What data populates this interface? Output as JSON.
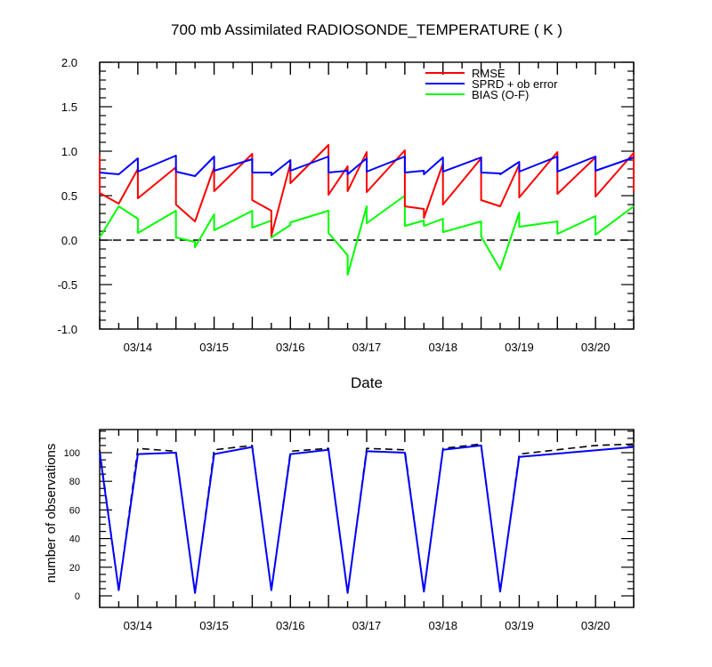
{
  "chart_data": [
    {
      "type": "line",
      "title": "700 mb Assimilated RADIOSONDE_TEMPERATURE ( K )",
      "xlabel": "Date",
      "ylabel": "",
      "x_tick_labels": [
        "03/14",
        "03/15",
        "03/16",
        "03/17",
        "03/18",
        "03/19",
        "03/20"
      ],
      "xlim": [
        13.5,
        20.5
      ],
      "ylim": [
        -1.0,
        2.0
      ],
      "y_ticks": [
        "-1.0",
        "-0.5",
        "0.0",
        "0.5",
        "1.0",
        "1.5",
        "2.0"
      ],
      "zero_line": true,
      "legend_placement": "top-right",
      "series": [
        {
          "name": "RMSE",
          "color": "#ff0000",
          "points": [
            [
              13.5,
              0.96
            ],
            [
              13.5,
              0.53
            ],
            [
              13.75,
              0.41
            ],
            [
              14.0,
              0.8
            ],
            [
              14.0,
              0.47
            ],
            [
              14.5,
              0.82
            ],
            [
              14.5,
              0.4
            ],
            [
              14.75,
              0.21
            ],
            [
              15.0,
              0.82
            ],
            [
              15.0,
              0.55
            ],
            [
              15.5,
              0.97
            ],
            [
              15.5,
              0.45
            ],
            [
              15.75,
              0.33
            ],
            [
              15.75,
              0.05
            ],
            [
              16.0,
              0.86
            ],
            [
              16.0,
              0.64
            ],
            [
              16.5,
              1.07
            ],
            [
              16.5,
              0.51
            ],
            [
              16.75,
              0.83
            ],
            [
              16.75,
              0.55
            ],
            [
              17.0,
              0.99
            ],
            [
              17.0,
              0.54
            ],
            [
              17.5,
              1.01
            ],
            [
              17.5,
              0.38
            ],
            [
              17.75,
              0.35
            ],
            [
              17.75,
              0.25
            ],
            [
              18.0,
              0.86
            ],
            [
              18.0,
              0.4
            ],
            [
              18.5,
              0.92
            ],
            [
              18.5,
              0.45
            ],
            [
              18.75,
              0.38
            ],
            [
              19.0,
              0.85
            ],
            [
              19.0,
              0.48
            ],
            [
              19.5,
              0.99
            ],
            [
              19.5,
              0.52
            ],
            [
              20.0,
              0.93
            ],
            [
              20.0,
              0.49
            ],
            [
              20.5,
              0.98
            ],
            [
              20.5,
              0.55
            ]
          ]
        },
        {
          "name": "SPRD + ob error",
          "color": "#0000ff",
          "points": [
            [
              13.5,
              0.76
            ],
            [
              13.75,
              0.74
            ],
            [
              14.0,
              0.92
            ],
            [
              14.0,
              0.77
            ],
            [
              14.5,
              0.95
            ],
            [
              14.5,
              0.77
            ],
            [
              14.75,
              0.72
            ],
            [
              15.0,
              0.94
            ],
            [
              15.0,
              0.78
            ],
            [
              15.5,
              0.91
            ],
            [
              15.5,
              0.76
            ],
            [
              15.75,
              0.76
            ],
            [
              15.75,
              0.73
            ],
            [
              16.0,
              0.9
            ],
            [
              16.0,
              0.78
            ],
            [
              16.5,
              0.94
            ],
            [
              16.5,
              0.76
            ],
            [
              16.75,
              0.78
            ],
            [
              16.75,
              0.74
            ],
            [
              17.0,
              0.92
            ],
            [
              17.0,
              0.77
            ],
            [
              17.5,
              0.94
            ],
            [
              17.5,
              0.76
            ],
            [
              17.75,
              0.78
            ],
            [
              17.75,
              0.74
            ],
            [
              18.0,
              0.93
            ],
            [
              18.0,
              0.77
            ],
            [
              18.5,
              0.93
            ],
            [
              18.5,
              0.76
            ],
            [
              18.75,
              0.75
            ],
            [
              18.75,
              0.74
            ],
            [
              19.0,
              0.88
            ],
            [
              19.0,
              0.77
            ],
            [
              19.5,
              0.94
            ],
            [
              19.5,
              0.77
            ],
            [
              20.0,
              0.94
            ],
            [
              20.0,
              0.78
            ],
            [
              20.5,
              0.93
            ]
          ]
        },
        {
          "name": "BIAS (O-F)",
          "color": "#00ff00",
          "points": [
            [
              13.5,
              0.03
            ],
            [
              13.75,
              0.38
            ],
            [
              14.0,
              0.24
            ],
            [
              14.0,
              0.08
            ],
            [
              14.5,
              0.33
            ],
            [
              14.5,
              0.03
            ],
            [
              14.75,
              -0.02
            ],
            [
              14.75,
              -0.08
            ],
            [
              15.0,
              0.29
            ],
            [
              15.0,
              0.11
            ],
            [
              15.5,
              0.33
            ],
            [
              15.5,
              0.14
            ],
            [
              15.75,
              0.22
            ],
            [
              15.75,
              0.03
            ],
            [
              16.0,
              0.17
            ],
            [
              16.0,
              0.2
            ],
            [
              16.5,
              0.33
            ],
            [
              16.5,
              0.08
            ],
            [
              16.75,
              -0.17
            ],
            [
              16.75,
              -0.39
            ],
            [
              17.0,
              0.38
            ],
            [
              17.0,
              0.19
            ],
            [
              17.5,
              0.5
            ],
            [
              17.5,
              0.16
            ],
            [
              17.75,
              0.22
            ],
            [
              17.75,
              0.16
            ],
            [
              18.0,
              0.24
            ],
            [
              18.0,
              0.09
            ],
            [
              18.5,
              0.21
            ],
            [
              18.5,
              0.04
            ],
            [
              18.75,
              -0.33
            ],
            [
              19.0,
              0.31
            ],
            [
              19.0,
              0.15
            ],
            [
              19.5,
              0.21
            ],
            [
              19.5,
              0.07
            ],
            [
              20.0,
              0.27
            ],
            [
              20.0,
              0.06
            ],
            [
              20.5,
              0.38
            ]
          ]
        }
      ]
    },
    {
      "type": "line",
      "title": "",
      "xlabel": "",
      "ylabel": "number of observations",
      "x_tick_labels": [
        "03/14",
        "03/15",
        "03/16",
        "03/17",
        "03/18",
        "03/19",
        "03/20"
      ],
      "xlim": [
        13.5,
        20.5
      ],
      "ylim": [
        0,
        117
      ],
      "y_ticks": [
        "0",
        "20",
        "40",
        "60",
        "80",
        "100"
      ],
      "series": [
        {
          "style": "dashed",
          "color": "#000000",
          "points": [
            [
              13.5,
              102
            ],
            [
              13.75,
              4
            ],
            [
              14.0,
              103
            ],
            [
              14.5,
              101
            ],
            [
              14.75,
              2
            ],
            [
              15.0,
              102
            ],
            [
              15.5,
              105
            ],
            [
              15.75,
              4
            ],
            [
              16.0,
              101
            ],
            [
              16.5,
              103
            ],
            [
              16.75,
              2
            ],
            [
              17.0,
              103
            ],
            [
              17.5,
              102
            ],
            [
              17.75,
              3
            ],
            [
              18.0,
              103
            ],
            [
              18.5,
              106
            ],
            [
              18.75,
              3
            ],
            [
              19.0,
              99
            ],
            [
              20.0,
              105
            ],
            [
              20.5,
              106
            ]
          ]
        },
        {
          "style": "solid",
          "color": "#0000ff",
          "points": [
            [
              13.5,
              100
            ],
            [
              13.75,
              4
            ],
            [
              14.0,
              99
            ],
            [
              14.5,
              100
            ],
            [
              14.75,
              2
            ],
            [
              15.0,
              99
            ],
            [
              15.5,
              104
            ],
            [
              15.75,
              4
            ],
            [
              16.0,
              99
            ],
            [
              16.5,
              102
            ],
            [
              16.75,
              2
            ],
            [
              17.0,
              101
            ],
            [
              17.5,
              100
            ],
            [
              17.75,
              3
            ],
            [
              18.0,
              102
            ],
            [
              18.5,
              105
            ],
            [
              18.75,
              3
            ],
            [
              19.0,
              97
            ],
            [
              20.5,
              104
            ]
          ]
        }
      ]
    }
  ]
}
